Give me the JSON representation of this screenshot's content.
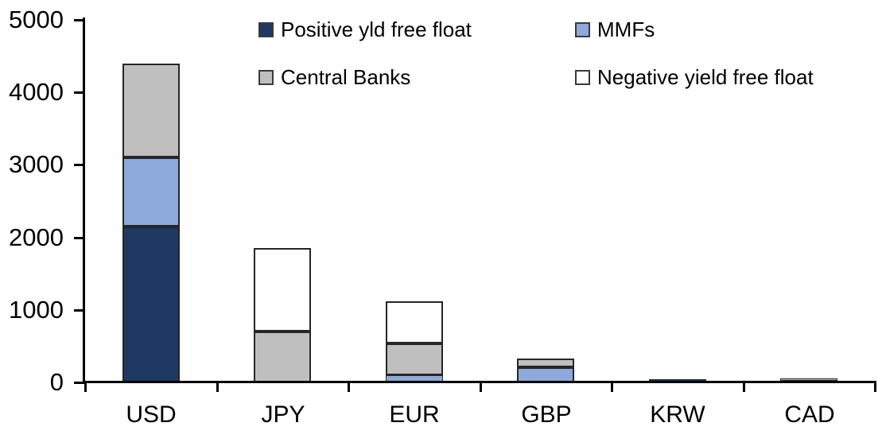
{
  "chart_data": {
    "type": "bar",
    "stacked": true,
    "title": "",
    "xlabel": "",
    "ylabel": "",
    "categories": [
      "USD",
      "JPY",
      "EUR",
      "GBP",
      "KRW",
      "CAD"
    ],
    "series": [
      {
        "name": "Positive yld free float",
        "color": "#1F3864",
        "values": [
          2150,
          0,
          0,
          0,
          40,
          25
        ]
      },
      {
        "name": "MMFs",
        "color": "#8EA9DB",
        "values": [
          950,
          0,
          100,
          210,
          0,
          0
        ]
      },
      {
        "name": "Central Banks",
        "color": "#BFBFBF",
        "values": [
          1300,
          700,
          435,
          120,
          0,
          30
        ]
      },
      {
        "name": "Negative yield free float",
        "color": "#FFFFFF",
        "values": [
          0,
          1150,
          585,
          0,
          0,
          0
        ]
      }
    ],
    "totals": [
      4400,
      1850,
      1120,
      330,
      40,
      55
    ],
    "ylim": [
      0,
      5000
    ],
    "yticks": [
      0,
      1000,
      2000,
      3000,
      4000,
      5000
    ],
    "grid": false,
    "legend_position": "top",
    "legend_layout": "2x2",
    "axis_color": "#000000",
    "text_color": "#000000",
    "segment_border_color": "#262626"
  }
}
